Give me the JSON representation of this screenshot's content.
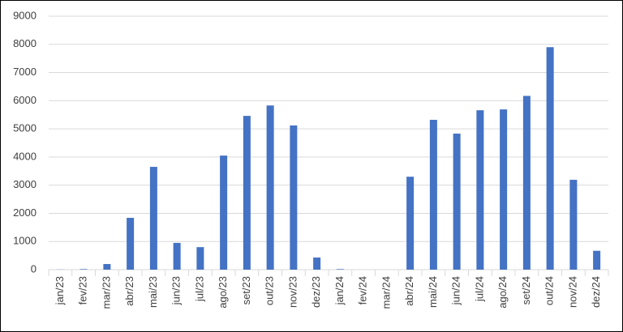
{
  "chart_data": {
    "type": "bar",
    "categories": [
      "jan/23",
      "fev/23",
      "mar/23",
      "abr/23",
      "mai/23",
      "jun/23",
      "jul/23",
      "ago/23",
      "set/23",
      "out/23",
      "nov/23",
      "dez/23",
      "jan/24",
      "fev/24",
      "mar/24",
      "abr/24",
      "mai/24",
      "jun/24",
      "jul/24",
      "ago/24",
      "set/24",
      "out/24",
      "nov/24",
      "dez/24"
    ],
    "values": [
      5,
      20,
      200,
      1840,
      3650,
      950,
      800,
      4050,
      5460,
      5830,
      5120,
      430,
      20,
      0,
      0,
      3300,
      5320,
      4830,
      5660,
      5690,
      6170,
      7900,
      3190,
      670
    ],
    "color": "#4472c4",
    "ylim": [
      0,
      9000
    ],
    "yticks": [
      0,
      1000,
      2000,
      3000,
      4000,
      5000,
      6000,
      7000,
      8000,
      9000
    ],
    "grid": true
  }
}
